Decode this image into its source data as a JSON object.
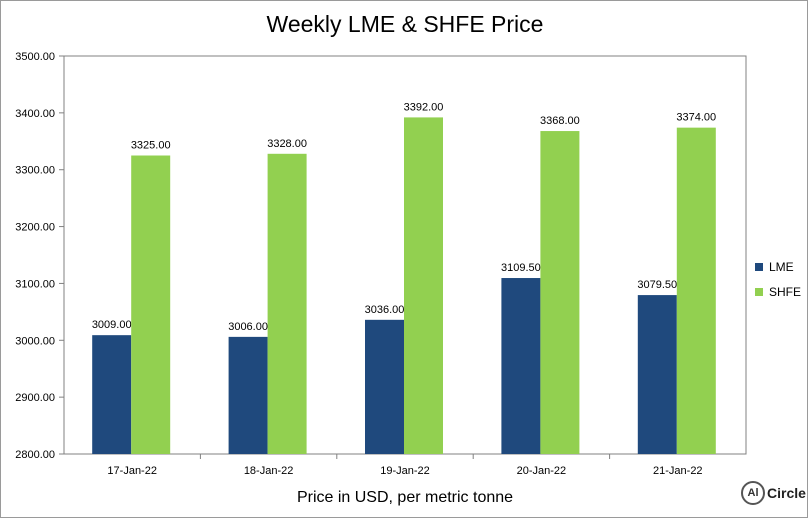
{
  "chart_data": {
    "type": "bar",
    "title": "Weekly LME & SHFE Price",
    "xlabel": "Price in USD, per metric tonne",
    "ylabel": "",
    "categories": [
      "17-Jan-22",
      "18-Jan-22",
      "19-Jan-22",
      "20-Jan-22",
      "21-Jan-22"
    ],
    "series": [
      {
        "name": "LME",
        "color": "#1f497d",
        "values": [
          3009.0,
          3006.0,
          3036.0,
          3109.5,
          3079.5
        ],
        "labels": [
          "3009.00",
          "3006.00",
          "3036.00",
          "3109.50",
          "3079.50"
        ]
      },
      {
        "name": "SHFE",
        "color": "#92d050",
        "values": [
          3325.0,
          3328.0,
          3392.0,
          3368.0,
          3374.0
        ],
        "labels": [
          "3325.00",
          "3328.00",
          "3392.00",
          "3368.00",
          "3374.00"
        ]
      }
    ],
    "ylim": [
      2800,
      3500
    ],
    "yticks": [
      "2800.00",
      "2900.00",
      "3000.00",
      "3100.00",
      "3200.00",
      "3300.00",
      "3400.00",
      "3500.00"
    ],
    "ytick_values": [
      2800,
      2900,
      3000,
      3100,
      3200,
      3300,
      3400,
      3500
    ],
    "grid": false,
    "legend_position": "right"
  },
  "logo": {
    "mark": "Al",
    "text": "Circle"
  }
}
